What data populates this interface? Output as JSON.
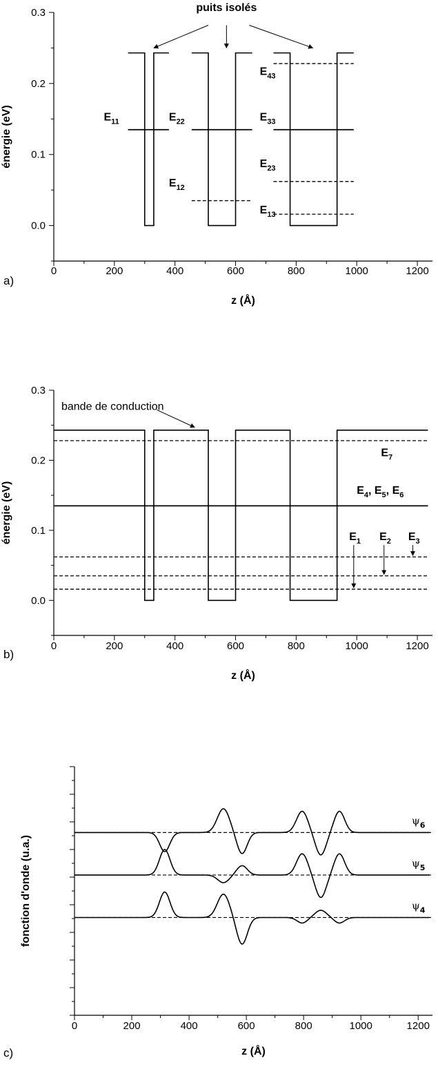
{
  "chart_data": [
    {
      "type": "line",
      "panel": "a)",
      "xlabel": "z (Å)",
      "ylabel": "énergie (eV)",
      "xlim": [
        0,
        1250
      ],
      "ylim": [
        -0.05,
        0.3
      ],
      "xticks": [
        "0",
        "200",
        "400",
        "600",
        "800",
        "1000",
        "1200"
      ],
      "yticks": [
        "0.0",
        "0.1",
        "0.2",
        "0.3"
      ],
      "wells": [
        {
          "segments": [
            [
              [
                245,
                0.243
              ],
              [
                300,
                0.243
              ],
              [
                300,
                0
              ],
              [
                330,
                0
              ],
              [
                330,
                0.243
              ],
              [
                380,
                0.243
              ]
            ]
          ]
        },
        {
          "segments": [
            [
              [
                455,
                0.243
              ],
              [
                510,
                0.243
              ],
              [
                510,
                0
              ],
              [
                600,
                0
              ],
              [
                600,
                0.243
              ],
              [
                655,
                0.243
              ]
            ]
          ]
        },
        {
          "segments": [
            [
              [
                725,
                0.243
              ],
              [
                780,
                0.243
              ],
              [
                780,
                0
              ],
              [
                935,
                0
              ],
              [
                935,
                0.243
              ],
              [
                990,
                0.243
              ]
            ]
          ]
        }
      ],
      "levels": [
        {
          "name": "E11",
          "y": 0.135,
          "x": [
            245,
            380
          ],
          "style": "solid"
        },
        {
          "name": "E22",
          "y": 0.135,
          "x": [
            455,
            655
          ],
          "style": "solid"
        },
        {
          "name": "E12",
          "y": 0.035,
          "x": [
            455,
            655
          ],
          "style": "dashed"
        },
        {
          "name": "E33",
          "y": 0.135,
          "x": [
            725,
            990
          ],
          "style": "solid"
        },
        {
          "name": "E43",
          "y": 0.228,
          "x": [
            725,
            990
          ],
          "style": "dashed"
        },
        {
          "name": "E23",
          "y": 0.062,
          "x": [
            725,
            990
          ],
          "style": "dashed"
        },
        {
          "name": "E13",
          "y": 0.016,
          "x": [
            725,
            990
          ],
          "style": "dashed"
        }
      ],
      "annotations": [
        {
          "text": "puits isolés",
          "x": 570,
          "y": 0.302
        },
        {
          "text": "E",
          "sub": "11",
          "x": 165,
          "y": 0.148
        },
        {
          "text": "E",
          "sub": "22",
          "x": 380,
          "y": 0.148
        },
        {
          "text": "E",
          "sub": "12",
          "x": 380,
          "y": 0.055
        },
        {
          "text": "E",
          "sub": "43",
          "x": 680,
          "y": 0.212
        },
        {
          "text": "E",
          "sub": "33",
          "x": 680,
          "y": 0.148
        },
        {
          "text": "E",
          "sub": "23",
          "x": 680,
          "y": 0.082
        },
        {
          "text": "E",
          "sub": "13",
          "x": 680,
          "y": 0.017
        }
      ],
      "arrows": [
        {
          "from": [
            510,
            0.282
          ],
          "to": [
            330,
            0.25
          ]
        },
        {
          "from": [
            570,
            0.282
          ],
          "to": [
            570,
            0.25
          ]
        },
        {
          "from": [
            645,
            0.282
          ],
          "to": [
            855,
            0.25
          ]
        }
      ]
    },
    {
      "type": "line",
      "panel": "b)",
      "xlabel": "z (Å)",
      "ylabel": "énergie (eV)",
      "xlim": [
        0,
        1250
      ],
      "ylim": [
        -0.05,
        0.3
      ],
      "xticks": [
        "0",
        "200",
        "400",
        "600",
        "800",
        "1000",
        "1200"
      ],
      "yticks": [
        "0.0",
        "0.1",
        "0.2",
        "0.3"
      ],
      "wells": [
        {
          "segments": [
            [
              [
                0,
                0.243
              ],
              [
                300,
                0.243
              ],
              [
                300,
                0
              ],
              [
                330,
                0
              ],
              [
                330,
                0.243
              ],
              [
                510,
                0.243
              ],
              [
                510,
                0
              ],
              [
                600,
                0
              ],
              [
                600,
                0.243
              ],
              [
                780,
                0.243
              ],
              [
                780,
                0
              ],
              [
                935,
                0
              ],
              [
                935,
                0.243
              ],
              [
                1235,
                0.243
              ]
            ]
          ]
        }
      ],
      "levels": [
        {
          "name": "E7",
          "y": 0.228,
          "x": [
            0,
            1235
          ],
          "style": "dashed"
        },
        {
          "name": "E4, E5, E6",
          "y": 0.135,
          "x": [
            0,
            1235
          ],
          "style": "solid"
        },
        {
          "name": "E3",
          "y": 0.062,
          "x": [
            0,
            1235
          ],
          "style": "dashed"
        },
        {
          "name": "E2",
          "y": 0.035,
          "x": [
            0,
            1235
          ],
          "style": "dashed"
        },
        {
          "name": "E1",
          "y": 0.016,
          "x": [
            0,
            1235
          ],
          "style": "dashed"
        }
      ],
      "annotations": [
        {
          "text": "bande de conduction",
          "x": 25,
          "y": 0.272,
          "plain": true
        },
        {
          "text": "E",
          "sub": "7",
          "x": 1080,
          "y": 0.206
        },
        {
          "text": "E",
          "sub": "4",
          "text2": ", E",
          "sub2": "5",
          "text3": ", E",
          "sub3": "6",
          "x": 1000,
          "y": 0.152
        },
        {
          "text": "E",
          "sub": "1",
          "x": 975,
          "y": 0.086
        },
        {
          "text": "E",
          "sub": "2",
          "x": 1075,
          "y": 0.086
        },
        {
          "text": "E",
          "sub": "3",
          "x": 1170,
          "y": 0.086
        }
      ],
      "arrows": [
        {
          "from": [
            340,
            0.272
          ],
          "to": [
            465,
            0.247
          ]
        },
        {
          "from": [
            990,
            0.079
          ],
          "to": [
            990,
            0.018
          ]
        },
        {
          "from": [
            1090,
            0.079
          ],
          "to": [
            1090,
            0.037
          ]
        },
        {
          "from": [
            1185,
            0.079
          ],
          "to": [
            1185,
            0.064
          ]
        }
      ]
    },
    {
      "type": "line",
      "panel": "c)",
      "xlabel": "z (Å)",
      "ylabel": "fonction d'onde (u.a.)",
      "xlim": [
        0,
        1250
      ],
      "ylim": [
        -3.3,
        2.55
      ],
      "xticks": [
        "0",
        "200",
        "400",
        "600",
        "800",
        "1000",
        "1200"
      ],
      "series": [
        {
          "name": "ψ6",
          "sub": "6",
          "baseline": 1.0,
          "bumps": [
            [
              315,
              -0.45,
              25
            ],
            [
              520,
              0.56,
              30
            ],
            [
              585,
              -0.5,
              25
            ],
            [
              795,
              0.5,
              28
            ],
            [
              860,
              -0.53,
              26
            ],
            [
              925,
              0.5,
              26
            ]
          ]
        },
        {
          "name": "ψ5",
          "sub": "5",
          "baseline": 0.0,
          "bumps": [
            [
              315,
              0.6,
              26
            ],
            [
              520,
              -0.18,
              28
            ],
            [
              585,
              0.22,
              26
            ],
            [
              795,
              0.5,
              28
            ],
            [
              860,
              -0.53,
              26
            ],
            [
              925,
              0.5,
              26
            ]
          ]
        },
        {
          "name": "ψ4",
          "sub": "4",
          "baseline": -1.0,
          "bumps": [
            [
              315,
              0.6,
              26
            ],
            [
              520,
              0.55,
              30
            ],
            [
              585,
              -0.63,
              26
            ],
            [
              795,
              -0.13,
              25
            ],
            [
              860,
              0.17,
              28
            ],
            [
              925,
              -0.13,
              25
            ]
          ]
        }
      ]
    }
  ]
}
